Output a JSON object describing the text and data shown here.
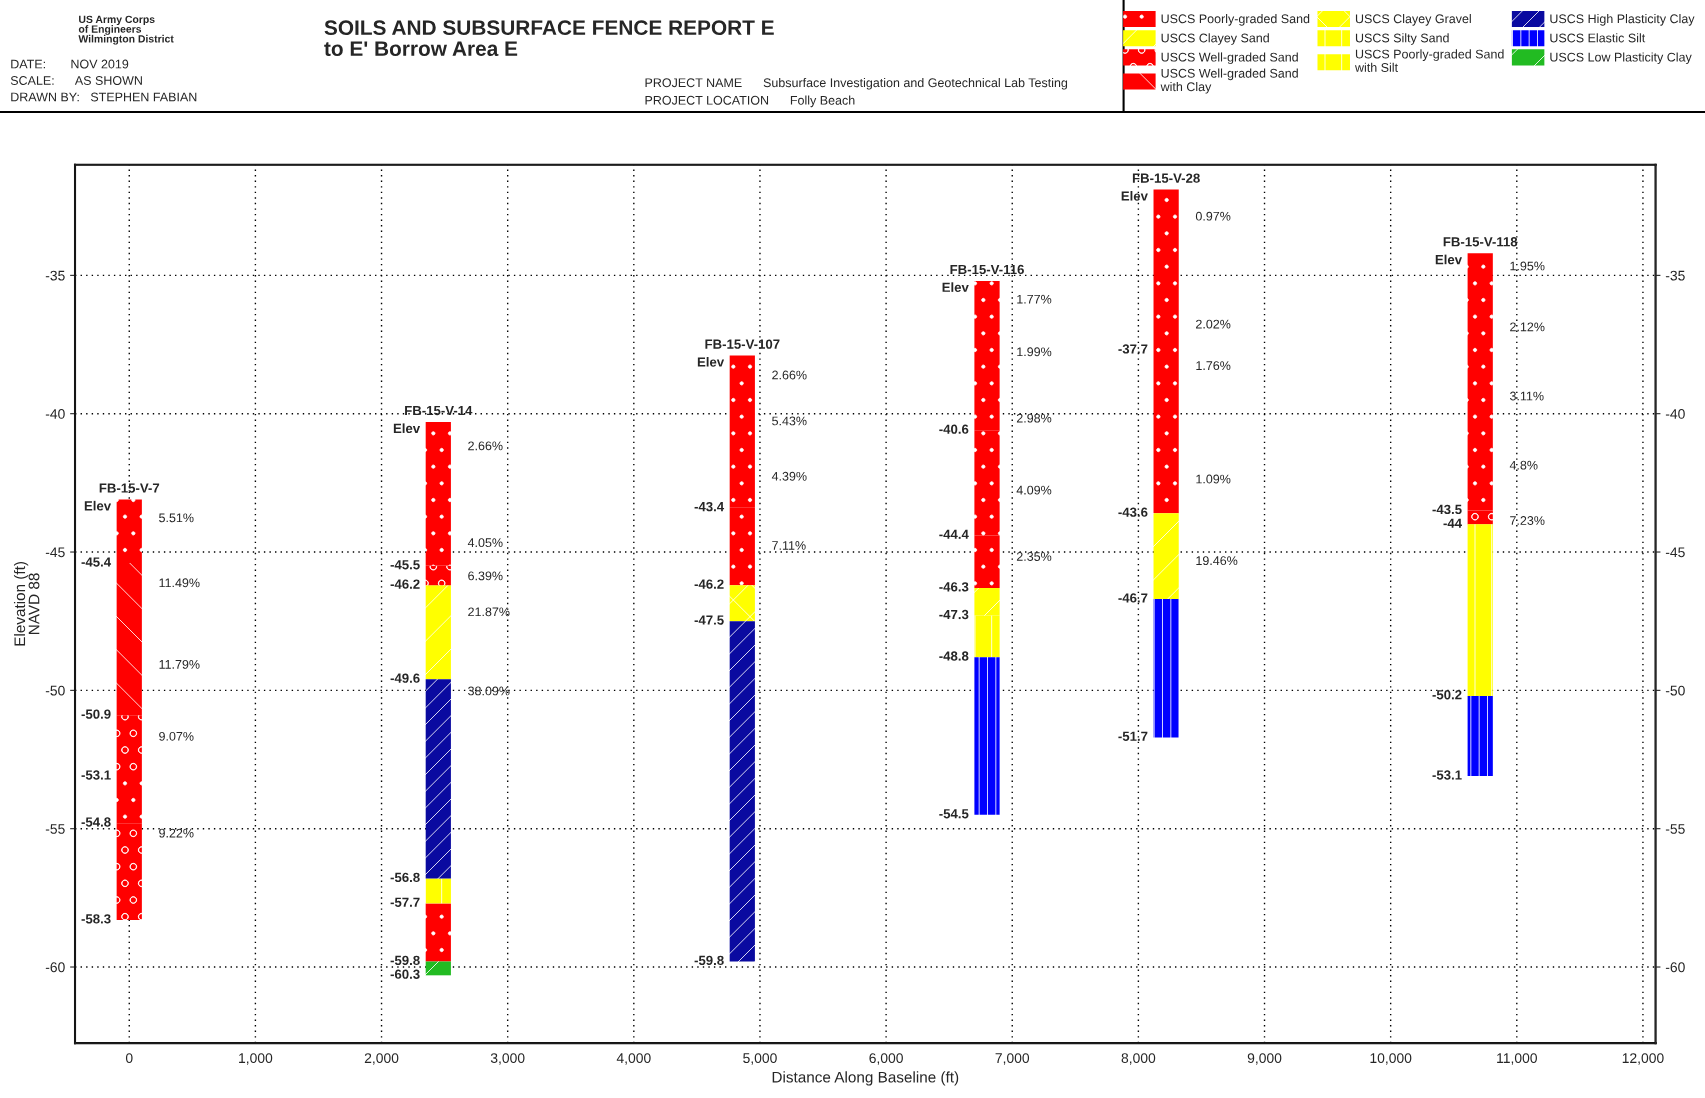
{
  "chart_data": {
    "type": "bar",
    "title": "SOILS AND SUBSURFACE FENCE REPORT E\nto E' Borrow Area E",
    "xlabel": "Distance Along Baseline (ft)",
    "ylabel": "Elevation (ft)\nNAVD 88",
    "series": [
      {
        "name": "USCS Poorly-graded Sand",
        "color": "#ff0000",
        "x": [
          0,
          2450,
          4860,
          6800,
          8220,
          10710
        ],
        "base": [
          -45.4,
          -45.5,
          -43.4,
          -40.6,
          -37.7,
          -43.5
        ],
        "values": [
          2.3,
          5.2,
          5.5,
          5.4,
          5.8,
          9.3
        ]
      },
      {
        "color": "#ff0000",
        "x": [
          0,
          2450,
          4860,
          6800,
          8220
        ],
        "base": [
          -54.8,
          -59.8,
          -46.2,
          -44.4,
          -43.6
        ],
        "values": [
          1.7,
          2.1,
          2.8,
          3.8,
          5.9
        ]
      },
      {
        "color": "#ff0000",
        "x": [
          6800
        ],
        "base": [
          -46.3
        ],
        "values": [
          1.9
        ]
      },
      {
        "name": "USCS Clayey Sand",
        "color": "#ffff00",
        "x": [
          2450,
          6800,
          8220
        ],
        "base": [
          -49.6,
          -47.3,
          -46.7
        ],
        "values": [
          3.4,
          1.0,
          3.1
        ]
      },
      {
        "name": "USCS Well-graded Sand",
        "color": "#ff0000",
        "x": [
          0,
          2450,
          10710
        ],
        "base": [
          -53.1,
          -46.2,
          -44
        ],
        "values": [
          2.2,
          0.7,
          0.5
        ]
      },
      {
        "color": "#ff0000",
        "x": [
          0
        ],
        "base": [
          -58.3
        ],
        "values": [
          3.5
        ]
      },
      {
        "name": "USCS Well-graded Sand\nwith Clay",
        "color": "#ff0000",
        "x": [
          0
        ],
        "base": [
          -50.9
        ],
        "values": [
          5.5
        ]
      },
      {
        "name": "USCS Clayey Gravel",
        "color": "#ffff00",
        "x": [
          4860
        ],
        "base": [
          -47.5
        ],
        "values": [
          1.3
        ]
      },
      {
        "name": "USCS Silty Sand",
        "color": "#ffff00",
        "x": [
          6800,
          10710
        ],
        "base": [
          -48.8,
          -50.2
        ],
        "values": [
          1.5,
          6.2
        ]
      },
      {
        "name": "USCS Poorly-graded Sand\nwith Silt",
        "color": "#ffff00",
        "x": [
          2450
        ],
        "base": [
          -57.7
        ],
        "values": [
          0.9
        ]
      },
      {
        "name": "USCS High Plasticity Clay",
        "color": "#0a0aa0",
        "x": [
          2450,
          4860
        ],
        "base": [
          -56.8,
          -59.8
        ],
        "values": [
          7.2,
          12.3
        ]
      },
      {
        "name": "USCS Elastic Silt",
        "color": "#0000ff",
        "x": [
          6800,
          8220,
          10710
        ],
        "base": [
          -54.5,
          -51.7,
          -53.1
        ],
        "values": [
          5.7,
          5.0,
          2.9
        ]
      },
      {
        "name": "USCS Low Plasticity Clay",
        "color": "#22bb22",
        "x": [
          2450
        ],
        "base": [
          -60.3
        ],
        "values": [
          0.5
        ]
      }
    ],
    "xlim": [
      -430,
      12100
    ],
    "xticks": [
      0,
      {
        "value": 1000,
        "label": "1,000"
      },
      {
        "value": 2000,
        "label": "2,000"
      },
      {
        "value": 3000,
        "label": "3,000"
      },
      {
        "value": 4000,
        "label": "4,000"
      },
      {
        "value": 5000,
        "label": "5,000"
      },
      {
        "value": 6000,
        "label": "6,000"
      },
      {
        "value": 7000,
        "label": "7,000"
      },
      {
        "value": 8000,
        "label": "8,000"
      },
      {
        "value": 9000,
        "label": "9,000"
      },
      {
        "value": 10000,
        "label": "10,000"
      },
      {
        "value": 11000,
        "label": "11,000"
      },
      {
        "value": 12000,
        "label": "12,000"
      }
    ],
    "ylim": [
      -62.75,
      -31
    ],
    "yticks": [
      -60,
      -55,
      -50,
      -45,
      -40,
      -35
    ],
    "y2lim": [
      -62.75,
      -31
    ],
    "y2ticks": [
      -60,
      -55,
      -50,
      -45,
      -40,
      -35
    ],
    "grid": true,
    "legend": "top right",
    "annotations": [
      "US Army Corps\nof Engineers\nWilmington District",
      "DATE:       NOV 2019",
      "SCALE:      AS SHOWN",
      "DRAWN BY:   STEPHEN FABIAN",
      "PROJECT NAME      Subsurface Investigation and Geotechnical Lab Testing",
      "PROJECT LOCATION      Folly Beach",
      "5.51%",
      "11.49%",
      "11.79%",
      "9.07%",
      "9.22%",
      "2.66%",
      "4.05%",
      "6.39%",
      "21.87%",
      "38.09%",
      "2.66%",
      "5.43%",
      "4.39%",
      "7.11%",
      "1.77%",
      "1.99%",
      "2.98%",
      "4.09%",
      "2.35%",
      "0.97%",
      "2.02%",
      "1.76%",
      "1.09%",
      "19.46%",
      "1.95%",
      "2.12%",
      "3.11%",
      "4.8%",
      "7.23%",
      {
        "text": "FB-15-V-7",
        "x": 0,
        "y": -43.1
      },
      {
        "text": "Elev",
        "x": 0,
        "y": -43.1
      },
      {
        "text": "-45.4",
        "x": 0,
        "y": -45.4
      },
      {
        "text": "-50.9",
        "x": 0,
        "y": -50.9
      },
      {
        "text": "-53.1",
        "x": 0,
        "y": -53.1
      },
      {
        "text": "-54.8",
        "x": 0,
        "y": -54.8
      },
      {
        "text": "-58.3",
        "x": 0,
        "y": -58.3
      },
      {
        "text": "FB-15-V-14",
        "x": 2450,
        "y": -40.3
      },
      {
        "text": "Elev",
        "x": 2450,
        "y": -40.3
      },
      {
        "text": "-45.5",
        "x": 2450,
        "y": -45.5
      },
      {
        "text": "-46.2",
        "x": 2450,
        "y": -46.2
      },
      {
        "text": "-49.6",
        "x": 2450,
        "y": -49.6
      },
      {
        "text": "-56.8",
        "x": 2450,
        "y": -56.8
      },
      {
        "text": "-57.7",
        "x": 2450,
        "y": -57.7
      },
      {
        "text": "-59.8",
        "x": 2450,
        "y": -59.8
      },
      {
        "text": "-60.3",
        "x": 2450,
        "y": -60.3
      },
      {
        "text": "FB-15-V-107",
        "x": 4860,
        "y": -37.9
      },
      {
        "text": "Elev",
        "x": 4860,
        "y": -37.9
      },
      {
        "text": "-43.4",
        "x": 4860,
        "y": -43.4
      },
      {
        "text": "-46.2",
        "x": 4860,
        "y": -46.2
      },
      {
        "text": "-47.5",
        "x": 4860,
        "y": -47.5
      },
      {
        "text": "-59.8",
        "x": 4860,
        "y": -59.8
      },
      {
        "text": "FB-15-V-116",
        "x": 6800,
        "y": -35.2
      },
      {
        "text": "Elev",
        "x": 6800,
        "y": -35.2
      },
      {
        "text": "-40.6",
        "x": 6800,
        "y": -40.6
      },
      {
        "text": "-44.4",
        "x": 6800,
        "y": -44.4
      },
      {
        "text": "-46.3",
        "x": 6800,
        "y": -46.3
      },
      {
        "text": "-47.3",
        "x": 6800,
        "y": -47.3
      },
      {
        "text": "-48.8",
        "x": 6800,
        "y": -48.8
      },
      {
        "text": "-54.5",
        "x": 6800,
        "y": -54.5
      },
      {
        "text": "FB-15-V-28",
        "x": 8220,
        "y": -31.9
      },
      {
        "text": "Elev",
        "x": 8220,
        "y": -31.9
      },
      {
        "text": "-37.7",
        "x": 8220,
        "y": -37.7
      },
      {
        "text": "-43.6",
        "x": 8220,
        "y": -43.6
      },
      {
        "text": "-46.7",
        "x": 8220,
        "y": -46.7
      },
      {
        "text": "-51.7",
        "x": 8220,
        "y": -51.7
      },
      {
        "text": "FB-15-V-118",
        "x": 10710,
        "y": -34.2
      },
      {
        "text": "Elev",
        "x": 10710,
        "y": -34.2
      },
      {
        "text": "-43.5",
        "x": 10710,
        "y": -43.5
      },
      {
        "text": "-44",
        "x": 10710,
        "y": -44
      },
      {
        "text": "-50.2",
        "x": 10710,
        "y": -50.2
      },
      {
        "text": "-53.1",
        "x": 10710,
        "y": -53.1
      }
    ]
  }
}
